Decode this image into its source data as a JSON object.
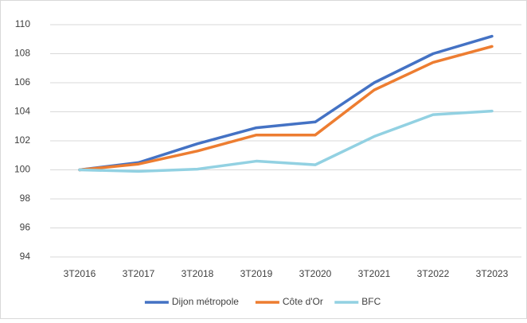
{
  "chart_data": {
    "type": "line",
    "categories": [
      "3T2016",
      "3T2017",
      "3T2018",
      "3T2019",
      "3T2020",
      "3T2021",
      "3T2022",
      "3T2023"
    ],
    "series": [
      {
        "name": "Dijon métropole",
        "color": "#4472c4",
        "values": [
          100,
          100.5,
          101.8,
          102.9,
          103.3,
          106,
          108,
          109.2
        ]
      },
      {
        "name": "Côte d'Or",
        "color": "#ed7d31",
        "values": [
          100,
          100.4,
          101.3,
          102.4,
          102.4,
          105.5,
          107.4,
          108.5
        ]
      },
      {
        "name": "BFC",
        "color": "#92d1e2",
        "values": [
          100,
          99.9,
          100.05,
          100.6,
          100.35,
          102.3,
          103.8,
          104.05
        ]
      }
    ],
    "ylim": [
      94,
      110
    ],
    "yticks": [
      94,
      96,
      98,
      100,
      102,
      104,
      106,
      108,
      110
    ],
    "grid": true,
    "legend": "bottom"
  }
}
